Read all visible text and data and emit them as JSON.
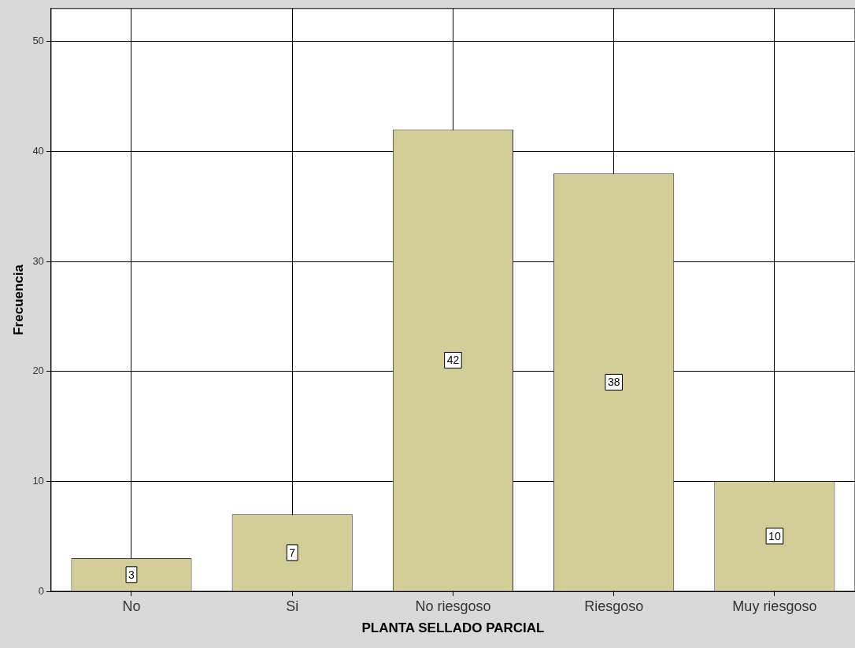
{
  "chart_data": {
    "type": "bar",
    "xlabel": "PLANTA SELLADO PARCIAL",
    "ylabel": "Frecuencia",
    "categories": [
      "No",
      "Si",
      "No riesgoso",
      "Riesgoso",
      "Muy riesgoso"
    ],
    "values": [
      3,
      7,
      42,
      38,
      10
    ],
    "color": "#d3ce97",
    "ylim": [
      0,
      53
    ],
    "yticks": [
      0,
      10,
      20,
      30,
      40,
      50
    ],
    "grid": true,
    "legend": false,
    "data_labels": true
  }
}
